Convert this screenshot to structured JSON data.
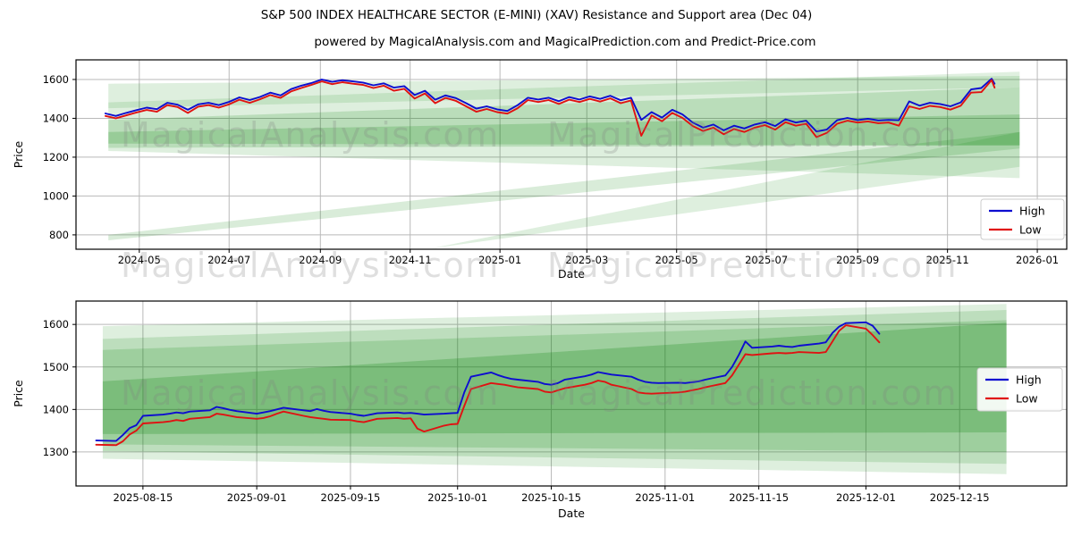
{
  "title": "S&P 500 INDEX HEALTHCARE SECTOR (E-MINI) (XAV) Resistance and Support area (Dec 04)",
  "subtitle": "powered by MagicalAnalysis.com and MagicalPrediction.com and Predict-Price.com",
  "watermarks": {
    "left": "MagicalAnalysis.com",
    "right": "MagicalPrediction.com"
  },
  "legend": {
    "high": "High",
    "low": "Low"
  },
  "colors": {
    "high": "#0d0dd0",
    "low": "#e01212",
    "band": "#008000",
    "grid": "#b9b9b9",
    "axis": "#000000",
    "watermark": "rgba(128,128,128,0.25)"
  },
  "chart_data": [
    {
      "type": "line",
      "name": "full-history",
      "xlabel": "Date",
      "ylabel": "Price",
      "xlim": [
        "2024-03-19",
        "2026-01-21"
      ],
      "ylim": [
        726,
        1701
      ],
      "y_ticks": [
        800,
        1000,
        1200,
        1400,
        1600
      ],
      "x_ticks": [
        {
          "date": "2024-05-01",
          "label": "2024-05"
        },
        {
          "date": "2024-07-01",
          "label": "2024-07"
        },
        {
          "date": "2024-09-01",
          "label": "2024-09"
        },
        {
          "date": "2024-11-01",
          "label": "2024-11"
        },
        {
          "date": "2025-01-01",
          "label": "2025-01"
        },
        {
          "date": "2025-03-01",
          "label": "2025-03"
        },
        {
          "date": "2025-05-01",
          "label": "2025-05"
        },
        {
          "date": "2025-07-01",
          "label": "2025-07"
        },
        {
          "date": "2025-09-01",
          "label": "2025-09"
        },
        {
          "date": "2025-11-01",
          "label": "2025-11"
        },
        {
          "date": "2026-01-01",
          "label": "2026-01"
        }
      ],
      "legend_entries": [
        "High",
        "Low"
      ],
      "dates": [
        "2024-04-08",
        "2024-04-15",
        "2024-04-22",
        "2024-04-29",
        "2024-05-06",
        "2024-05-13",
        "2024-05-20",
        "2024-05-27",
        "2024-06-03",
        "2024-06-10",
        "2024-06-17",
        "2024-06-24",
        "2024-07-01",
        "2024-07-08",
        "2024-07-15",
        "2024-07-22",
        "2024-07-29",
        "2024-08-05",
        "2024-08-12",
        "2024-08-19",
        "2024-08-26",
        "2024-09-02",
        "2024-09-09",
        "2024-09-16",
        "2024-09-23",
        "2024-09-30",
        "2024-10-07",
        "2024-10-14",
        "2024-10-21",
        "2024-10-28",
        "2024-11-04",
        "2024-11-11",
        "2024-11-18",
        "2024-11-25",
        "2024-12-02",
        "2024-12-09",
        "2024-12-16",
        "2024-12-23",
        "2024-12-30",
        "2025-01-06",
        "2025-01-13",
        "2025-01-20",
        "2025-01-27",
        "2025-02-03",
        "2025-02-10",
        "2025-02-17",
        "2025-02-24",
        "2025-03-03",
        "2025-03-10",
        "2025-03-17",
        "2025-03-24",
        "2025-03-31",
        "2025-04-07",
        "2025-04-14",
        "2025-04-21",
        "2025-04-28",
        "2025-05-05",
        "2025-05-12",
        "2025-05-19",
        "2025-05-26",
        "2025-06-02",
        "2025-06-09",
        "2025-06-16",
        "2025-06-23",
        "2025-06-30",
        "2025-07-07",
        "2025-07-14",
        "2025-07-21",
        "2025-07-28",
        "2025-08-04",
        "2025-08-11",
        "2025-08-18",
        "2025-08-25",
        "2025-09-01",
        "2025-09-08",
        "2025-09-15",
        "2025-09-22",
        "2025-09-29",
        "2025-10-06",
        "2025-10-13",
        "2025-10-20",
        "2025-10-27",
        "2025-11-03",
        "2025-11-10",
        "2025-11-17",
        "2025-11-24",
        "2025-12-01",
        "2025-12-03"
      ],
      "series": [
        {
          "name": "High",
          "values": [
            1425,
            1412,
            1428,
            1442,
            1455,
            1447,
            1480,
            1470,
            1444,
            1472,
            1480,
            1468,
            1485,
            1508,
            1494,
            1510,
            1532,
            1518,
            1550,
            1568,
            1582,
            1600,
            1588,
            1596,
            1590,
            1584,
            1570,
            1580,
            1558,
            1566,
            1520,
            1542,
            1496,
            1518,
            1504,
            1478,
            1450,
            1462,
            1446,
            1438,
            1468,
            1506,
            1497,
            1506,
            1488,
            1509,
            1497,
            1513,
            1500,
            1516,
            1493,
            1506,
            1392,
            1432,
            1404,
            1444,
            1420,
            1378,
            1352,
            1368,
            1338,
            1362,
            1348,
            1368,
            1380,
            1360,
            1395,
            1378,
            1388,
            1332,
            1342,
            1390,
            1402,
            1391,
            1398,
            1389,
            1392,
            1390,
            1487,
            1465,
            1480,
            1474,
            1462,
            1482,
            1549,
            1556,
            1604,
            1578
          ]
        },
        {
          "name": "Low",
          "values": [
            1412,
            1400,
            1415,
            1430,
            1443,
            1434,
            1468,
            1458,
            1428,
            1460,
            1468,
            1455,
            1472,
            1496,
            1480,
            1498,
            1520,
            1505,
            1538,
            1556,
            1572,
            1590,
            1576,
            1586,
            1578,
            1572,
            1556,
            1568,
            1542,
            1552,
            1502,
            1528,
            1478,
            1505,
            1490,
            1462,
            1434,
            1448,
            1432,
            1424,
            1452,
            1494,
            1484,
            1494,
            1474,
            1496,
            1484,
            1500,
            1486,
            1503,
            1478,
            1492,
            1310,
            1415,
            1385,
            1428,
            1402,
            1360,
            1335,
            1352,
            1318,
            1345,
            1330,
            1352,
            1365,
            1342,
            1380,
            1362,
            1372,
            1303,
            1325,
            1372,
            1388,
            1378,
            1384,
            1375,
            1378,
            1362,
            1462,
            1448,
            1464,
            1458,
            1445,
            1465,
            1532,
            1535,
            1597,
            1558
          ]
        }
      ],
      "bands": [
        {
          "alpha": 0.13,
          "points": [
            [
              "2024-04-10",
              1578
            ],
            [
              "2025-12-20",
              1618
            ],
            [
              "2025-12-20",
              1092
            ],
            [
              "2024-04-10",
              1232
            ]
          ]
        },
        {
          "alpha": 0.12,
          "points": [
            [
              "2024-04-10",
              1482
            ],
            [
              "2025-12-20",
              1640
            ],
            [
              "2025-12-20",
              1560
            ],
            [
              "2024-04-10",
              1452
            ]
          ]
        },
        {
          "alpha": 0.16,
          "points": [
            [
              "2024-04-10",
              1392
            ],
            [
              "2025-12-20",
              1560
            ],
            [
              "2025-12-20",
              1262
            ],
            [
              "2024-04-10",
              1248
            ]
          ]
        },
        {
          "alpha": 0.18,
          "points": [
            [
              "2024-04-10",
              1330
            ],
            [
              "2025-12-20",
              1420
            ],
            [
              "2025-12-20",
              1260
            ],
            [
              "2024-04-10",
              1270
            ]
          ]
        },
        {
          "alpha": 0.15,
          "points": [
            [
              "2024-04-10",
              800
            ],
            [
              "2025-12-20",
              1330
            ],
            [
              "2025-12-20",
              1245
            ],
            [
              "2024-04-10",
              772
            ]
          ]
        },
        {
          "alpha": 0.13,
          "points": [
            [
              "2024-11-15",
              730
            ],
            [
              "2025-12-20",
              1330
            ],
            [
              "2025-12-20",
              1150
            ]
          ]
        }
      ]
    },
    {
      "type": "line",
      "name": "recent-four-months",
      "xlabel": "Date",
      "ylabel": "Price",
      "xlim": [
        "2025-08-05",
        "2025-12-31"
      ],
      "ylim": [
        1220,
        1655
      ],
      "y_ticks": [
        1300,
        1400,
        1500,
        1600
      ],
      "x_ticks": [
        {
          "date": "2025-08-15",
          "label": "2025-08-15"
        },
        {
          "date": "2025-09-01",
          "label": "2025-09-01"
        },
        {
          "date": "2025-09-15",
          "label": "2025-09-15"
        },
        {
          "date": "2025-10-01",
          "label": "2025-10-01"
        },
        {
          "date": "2025-10-15",
          "label": "2025-10-15"
        },
        {
          "date": "2025-11-01",
          "label": "2025-11-01"
        },
        {
          "date": "2025-11-15",
          "label": "2025-11-15"
        },
        {
          "date": "2025-12-01",
          "label": "2025-12-01"
        },
        {
          "date": "2025-12-15",
          "label": "2025-12-15"
        }
      ],
      "legend_entries": [
        "High",
        "Low"
      ],
      "dates": [
        "2025-08-08",
        "2025-08-11",
        "2025-08-12",
        "2025-08-13",
        "2025-08-14",
        "2025-08-15",
        "2025-08-18",
        "2025-08-19",
        "2025-08-20",
        "2025-08-21",
        "2025-08-22",
        "2025-08-25",
        "2025-08-26",
        "2025-08-27",
        "2025-08-28",
        "2025-08-29",
        "2025-09-01",
        "2025-09-02",
        "2025-09-03",
        "2025-09-04",
        "2025-09-05",
        "2025-09-08",
        "2025-09-09",
        "2025-09-10",
        "2025-09-11",
        "2025-09-12",
        "2025-09-15",
        "2025-09-16",
        "2025-09-17",
        "2025-09-18",
        "2025-09-19",
        "2025-09-22",
        "2025-09-23",
        "2025-09-24",
        "2025-09-25",
        "2025-09-26",
        "2025-09-29",
        "2025-09-30",
        "2025-10-01",
        "2025-10-02",
        "2025-10-03",
        "2025-10-06",
        "2025-10-07",
        "2025-10-08",
        "2025-10-09",
        "2025-10-10",
        "2025-10-13",
        "2025-10-14",
        "2025-10-15",
        "2025-10-16",
        "2025-10-17",
        "2025-10-20",
        "2025-10-21",
        "2025-10-22",
        "2025-10-23",
        "2025-10-24",
        "2025-10-27",
        "2025-10-28",
        "2025-10-29",
        "2025-10-30",
        "2025-10-31",
        "2025-11-03",
        "2025-11-04",
        "2025-11-05",
        "2025-11-06",
        "2025-11-07",
        "2025-11-10",
        "2025-11-11",
        "2025-11-12",
        "2025-11-13",
        "2025-11-14",
        "2025-11-17",
        "2025-11-18",
        "2025-11-19",
        "2025-11-20",
        "2025-11-21",
        "2025-11-24",
        "2025-11-25",
        "2025-11-26",
        "2025-11-27",
        "2025-11-28",
        "2025-12-01",
        "2025-12-02",
        "2025-12-03"
      ],
      "series": [
        {
          "name": "High",
          "values": [
            1327,
            1326,
            1340,
            1356,
            1363,
            1385,
            1388,
            1390,
            1393,
            1391,
            1395,
            1398,
            1406,
            1403,
            1399,
            1396,
            1390,
            1393,
            1396,
            1400,
            1404,
            1398,
            1396,
            1401,
            1397,
            1394,
            1390,
            1387,
            1385,
            1388,
            1391,
            1393,
            1391,
            1392,
            1390,
            1388,
            1390,
            1391,
            1392,
            1440,
            1477,
            1487,
            1481,
            1476,
            1472,
            1470,
            1465,
            1460,
            1458,
            1462,
            1470,
            1478,
            1482,
            1488,
            1485,
            1482,
            1477,
            1470,
            1465,
            1463,
            1462,
            1463,
            1462,
            1464,
            1466,
            1470,
            1480,
            1500,
            1528,
            1560,
            1545,
            1548,
            1550,
            1548,
            1547,
            1550,
            1555,
            1558,
            1580,
            1595,
            1603,
            1605,
            1597,
            1578
          ]
        },
        {
          "name": "Low",
          "values": [
            1317,
            1316,
            1325,
            1341,
            1350,
            1367,
            1370,
            1372,
            1375,
            1373,
            1378,
            1382,
            1390,
            1388,
            1385,
            1382,
            1378,
            1380,
            1384,
            1390,
            1395,
            1385,
            1382,
            1380,
            1378,
            1376,
            1375,
            1372,
            1370,
            1374,
            1378,
            1380,
            1378,
            1379,
            1355,
            1348,
            1362,
            1365,
            1366,
            1408,
            1448,
            1462,
            1460,
            1458,
            1455,
            1452,
            1448,
            1442,
            1440,
            1445,
            1450,
            1458,
            1462,
            1468,
            1465,
            1458,
            1448,
            1440,
            1438,
            1437,
            1438,
            1440,
            1442,
            1445,
            1448,
            1452,
            1462,
            1480,
            1505,
            1530,
            1528,
            1532,
            1533,
            1532,
            1533,
            1535,
            1533,
            1535,
            1560,
            1585,
            1598,
            1590,
            1575,
            1558
          ]
        }
      ],
      "bands": [
        {
          "alpha": 0.13,
          "points": [
            [
              "2025-08-09",
              1596
            ],
            [
              "2025-12-22",
              1648
            ],
            [
              "2025-12-22",
              1248
            ],
            [
              "2025-08-09",
              1284
            ]
          ]
        },
        {
          "alpha": 0.15,
          "points": [
            [
              "2025-08-09",
              1566
            ],
            [
              "2025-12-22",
              1634
            ],
            [
              "2025-12-22",
              1272
            ],
            [
              "2025-08-09",
              1302
            ]
          ]
        },
        {
          "alpha": 0.16,
          "points": [
            [
              "2025-08-09",
              1540
            ],
            [
              "2025-12-22",
              1610
            ],
            [
              "2025-12-22",
              1300
            ],
            [
              "2025-08-09",
              1318
            ]
          ]
        },
        {
          "alpha": 0.22,
          "points": [
            [
              "2025-08-09",
              1466
            ],
            [
              "2025-12-22",
              1604
            ],
            [
              "2025-12-22",
              1346
            ],
            [
              "2025-08-09",
              1342
            ]
          ]
        }
      ]
    }
  ]
}
